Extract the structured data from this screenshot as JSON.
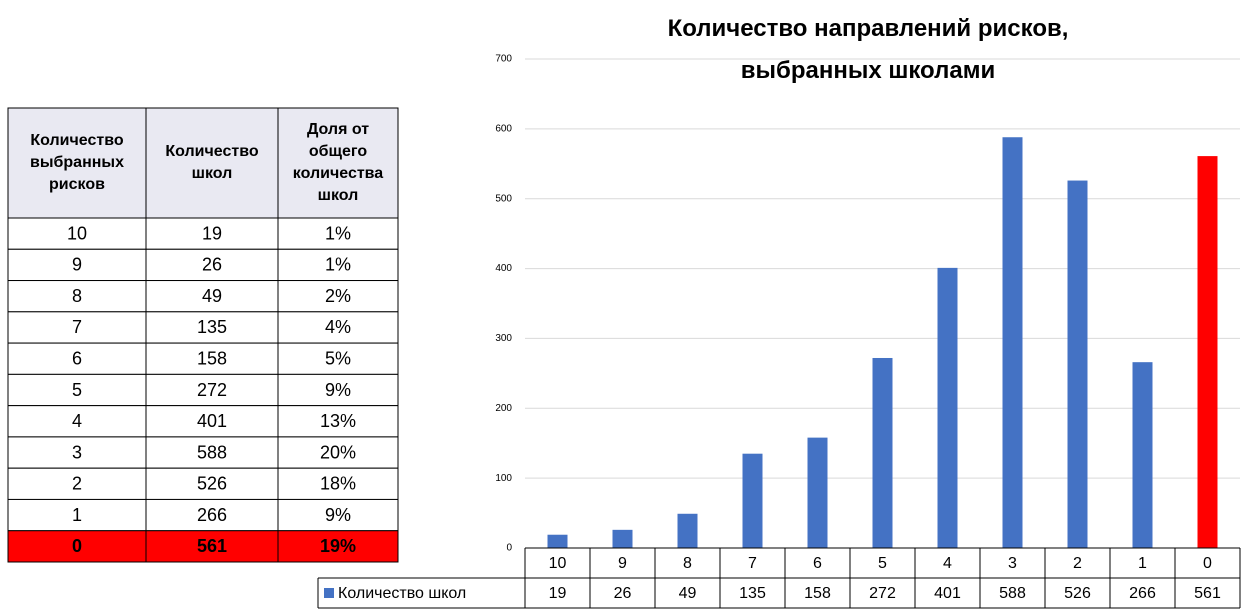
{
  "table": {
    "header": [
      "Количество выбранных рисков",
      "Количество школ",
      "Доля от общего количества школ"
    ],
    "rows": [
      [
        "10",
        "19",
        "1%"
      ],
      [
        "9",
        "26",
        "1%"
      ],
      [
        "8",
        "49",
        "2%"
      ],
      [
        "7",
        "135",
        "4%"
      ],
      [
        "6",
        "158",
        "5%"
      ],
      [
        "5",
        "272",
        "9%"
      ],
      [
        "4",
        "401",
        "13%"
      ],
      [
        "3",
        "588",
        "20%"
      ],
      [
        "2",
        "526",
        "18%"
      ],
      [
        "1",
        "266",
        "9%"
      ],
      [
        "0",
        "561",
        "19%"
      ]
    ]
  },
  "chart_data": {
    "type": "bar",
    "title": "Количество направлений рисков, выбранных школами",
    "categories": [
      "10",
      "9",
      "8",
      "7",
      "6",
      "5",
      "4",
      "3",
      "2",
      "1",
      "0"
    ],
    "series": [
      {
        "name": "Количество школ",
        "color": "#4472c4",
        "colors": [
          "#4472c4",
          "#4472c4",
          "#4472c4",
          "#4472c4",
          "#4472c4",
          "#4472c4",
          "#4472c4",
          "#4472c4",
          "#4472c4",
          "#4472c4",
          "#ff0000"
        ],
        "values": [
          19,
          26,
          49,
          135,
          158,
          272,
          401,
          588,
          526,
          266,
          561
        ]
      }
    ],
    "ylim": [
      0,
      700
    ],
    "yticks": [
      0,
      100,
      200,
      300,
      400,
      500,
      600,
      700
    ],
    "grid": true,
    "data_table": true
  }
}
